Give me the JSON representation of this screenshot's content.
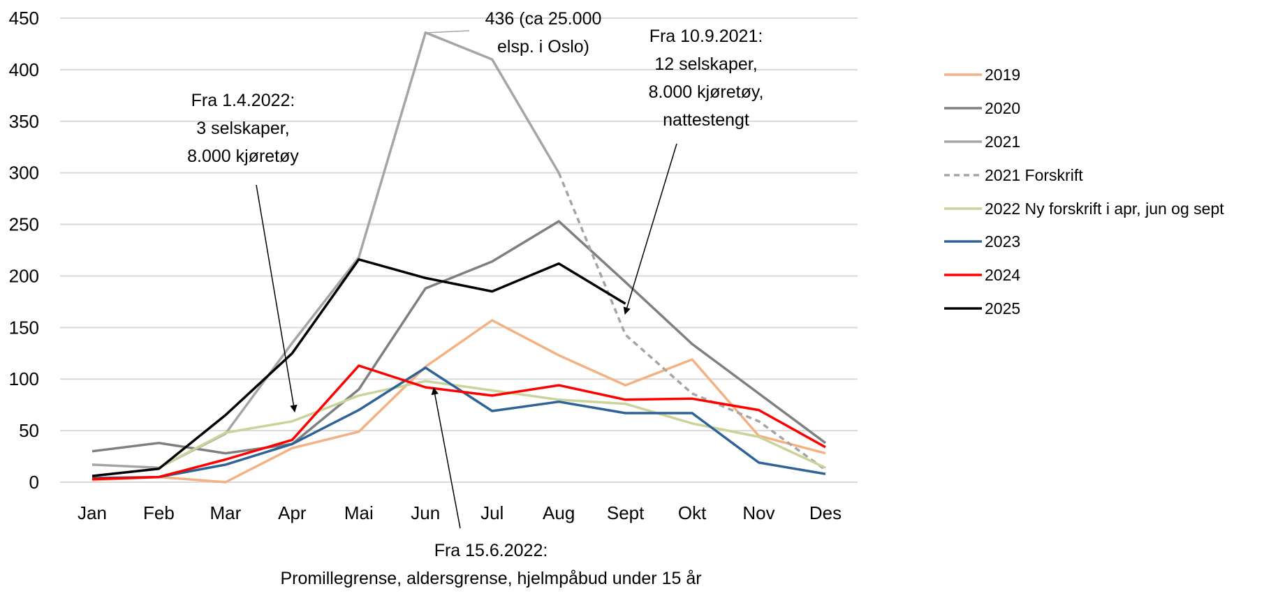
{
  "chart_data": {
    "type": "line",
    "title": "",
    "xlabel": "",
    "ylabel": "",
    "ylim": [
      0,
      450
    ],
    "yticks": [
      "0",
      "50",
      "100",
      "150",
      "200",
      "250",
      "300",
      "350",
      "400",
      "450"
    ],
    "categories": [
      "Jan",
      "Feb",
      "Mar",
      "Apr",
      "Mai",
      "Jun",
      "Jul",
      "Aug",
      "Sept",
      "Okt",
      "Nov",
      "Des"
    ],
    "grid": true,
    "legend_position": "right",
    "series": [
      {
        "name": "2019",
        "color": "#F4B183",
        "dash": false,
        "values": [
          2,
          5,
          0,
          33,
          49,
          112,
          157,
          123,
          94,
          119,
          45,
          28
        ]
      },
      {
        "name": "2020",
        "color": "#7F7F7F",
        "dash": false,
        "values": [
          30,
          38,
          28,
          37,
          90,
          188,
          214,
          253,
          194,
          134,
          86,
          38
        ]
      },
      {
        "name": "2021",
        "color": "#A5A5A5",
        "dash": false,
        "values": [
          17,
          14,
          47,
          135,
          218,
          436,
          410,
          300,
          null,
          null,
          null,
          null
        ]
      },
      {
        "name": "2021 Forskrift",
        "color": "#A5A5A5",
        "dash": true,
        "values": [
          null,
          null,
          null,
          null,
          null,
          null,
          null,
          300,
          143,
          86,
          59,
          12
        ]
      },
      {
        "name": "2022 Ny forskrift i apr, jun og sept",
        "color": "#C9D39A",
        "dash": false,
        "values": [
          null,
          14,
          48,
          59,
          84,
          98,
          89,
          80,
          76,
          57,
          44,
          14
        ]
      },
      {
        "name": "2023",
        "color": "#2F6397",
        "dash": false,
        "values": [
          4,
          5,
          17,
          37,
          70,
          111,
          69,
          78,
          67,
          67,
          19,
          8
        ]
      },
      {
        "name": "2024",
        "color": "#FF0000",
        "dash": false,
        "values": [
          3,
          5,
          22,
          41,
          113,
          92,
          84,
          94,
          80,
          81,
          70,
          34
        ]
      },
      {
        "name": "2025",
        "color": "#000000",
        "dash": false,
        "values": [
          6,
          13,
          65,
          125,
          216,
          198,
          185,
          212,
          173,
          null,
          null,
          null
        ]
      }
    ],
    "annotations": [
      {
        "lines": [
          "436 (ca 25.000",
          "elsp. i Oslo)"
        ]
      },
      {
        "lines": [
          "Fra 1.4.2022:",
          "3 selskaper,",
          "8.000 kjøretøy"
        ]
      },
      {
        "lines": [
          "Fra 10.9.2021:",
          "12 selskaper,",
          "8.000 kjøretøy,",
          "nattestengt"
        ]
      },
      {
        "lines": [
          "Fra 15.6.2022:",
          "Promillegrense, aldersgrense, hjelmpåbud under 15 år"
        ]
      }
    ]
  }
}
